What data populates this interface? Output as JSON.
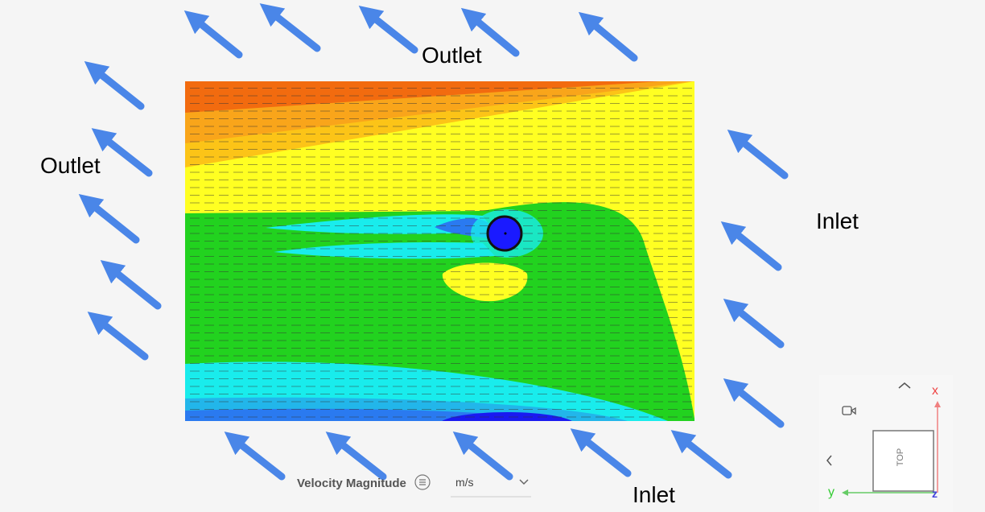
{
  "boundary_labels": [
    "Outlet",
    "Outlet",
    "Inlet",
    "Inlet"
  ],
  "legend": {
    "quantity": "Velocity Magnitude",
    "unit": "m/s"
  },
  "view_cube": {
    "face": "TOP",
    "axes": [
      "x",
      "y",
      "z"
    ]
  }
}
